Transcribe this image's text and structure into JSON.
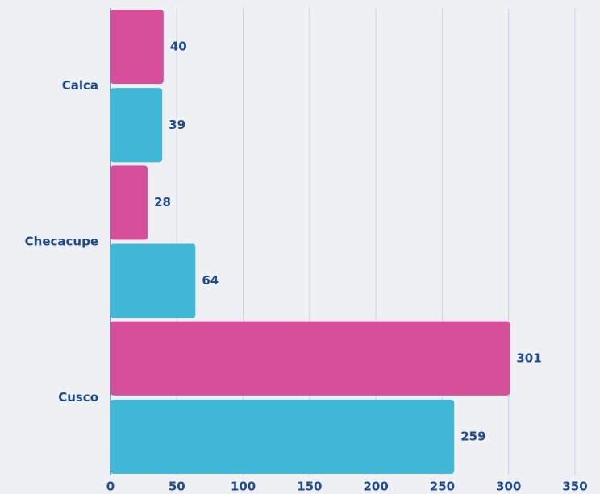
{
  "chart_data": {
    "type": "bar",
    "orientation": "horizontal",
    "categories": [
      "Calca",
      "Checacupe",
      "Cusco"
    ],
    "series": [
      {
        "color": "#d54f9b",
        "values": [
          40,
          28,
          301
        ]
      },
      {
        "color": "#42b8d8",
        "values": [
          39,
          64,
          259
        ]
      }
    ],
    "xlim": [
      0,
      350
    ],
    "xticks": [
      0,
      50,
      100,
      150,
      200,
      250,
      300,
      350
    ],
    "grid": true
  }
}
